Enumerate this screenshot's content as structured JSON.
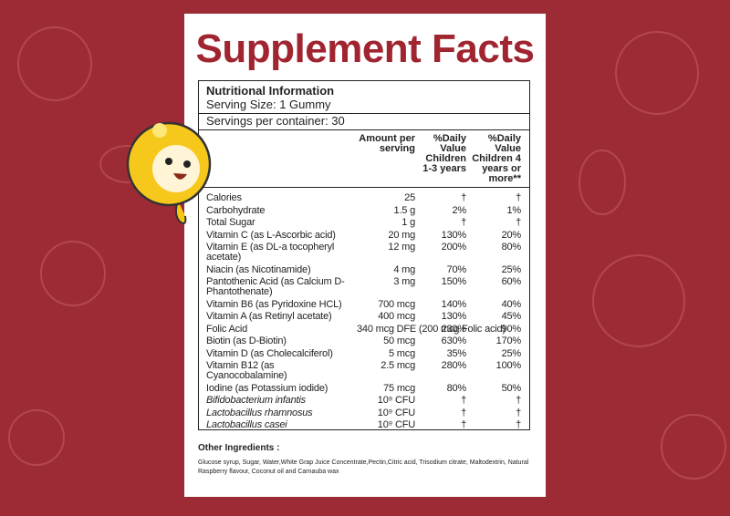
{
  "header": {
    "title": "Supplement Facts"
  },
  "info": {
    "heading": "Nutritional Information",
    "serving_size": "Serving Size:  1 Gummy",
    "servings": "Servings per container: 30"
  },
  "columns": [
    "Amount per serving",
    "%Daily Value Children 1-3 years",
    "%Daily Value Children 4 years or more**"
  ],
  "rows": [
    [
      "Calories",
      "25",
      "†",
      "†"
    ],
    [
      "Carbohydrate",
      "1.5 g",
      "2%",
      "1%"
    ],
    [
      "Total Sugar",
      "1 g",
      "†",
      "†"
    ],
    [
      "Vitamin C (as L-Ascorbic acid)",
      "20 mg",
      "130%",
      "20%"
    ],
    [
      "Vitamin E (as DL-a tocopheryl acetate)",
      "12 mg",
      "200%",
      "80%"
    ],
    [
      "Niacin (as Nicotinamide)",
      "4 mg",
      "70%",
      "25%"
    ],
    [
      "Pantothenic Acid (as Calcium D-Phantothenate)",
      "3 mg",
      "150%",
      "60%"
    ],
    [
      "Vitamin B6 (as Pyridoxine HCL)",
      "700 mcg",
      "140%",
      "40%"
    ],
    [
      "Vitamin A (as Retinyl acetate)",
      "400 mcg",
      "130%",
      "45%"
    ],
    [
      "Folic Acid",
      "340 mcg DFE (200 mcg Folic acid)",
      "230%",
      "90%"
    ],
    [
      "Biotin (as D-Biotin)",
      "50 mcg",
      "630%",
      "170%"
    ],
    [
      "Vitamin D (as Cholecalciferol)",
      "5 mcg",
      "35%",
      "25%"
    ],
    [
      "Vitamin B12 (as Cyanocobalamine)",
      "2.5 mcg",
      "280%",
      "100%"
    ],
    [
      "Iodine (as Potassium iodide)",
      "75 mcg",
      "80%",
      "50%"
    ],
    [
      "Bifidobacterium infantis",
      "10⁹ CFU",
      "†",
      "†"
    ],
    [
      "Lactobacillus rhamnosus",
      "10⁹ CFU",
      "†",
      "†"
    ],
    [
      "Lactobacillus casei",
      "10⁹ CFU",
      "†",
      "†"
    ]
  ],
  "other": {
    "heading": "Other Ingredients :",
    "text": "Glucose syrup, Sugar, Water,White Grap Juice Concentrate,Pectin,Citric acid, Trisodium citrate, Maltodextrin, Natural Raspberry flavour, Coconut oil and Carnauba wax"
  }
}
